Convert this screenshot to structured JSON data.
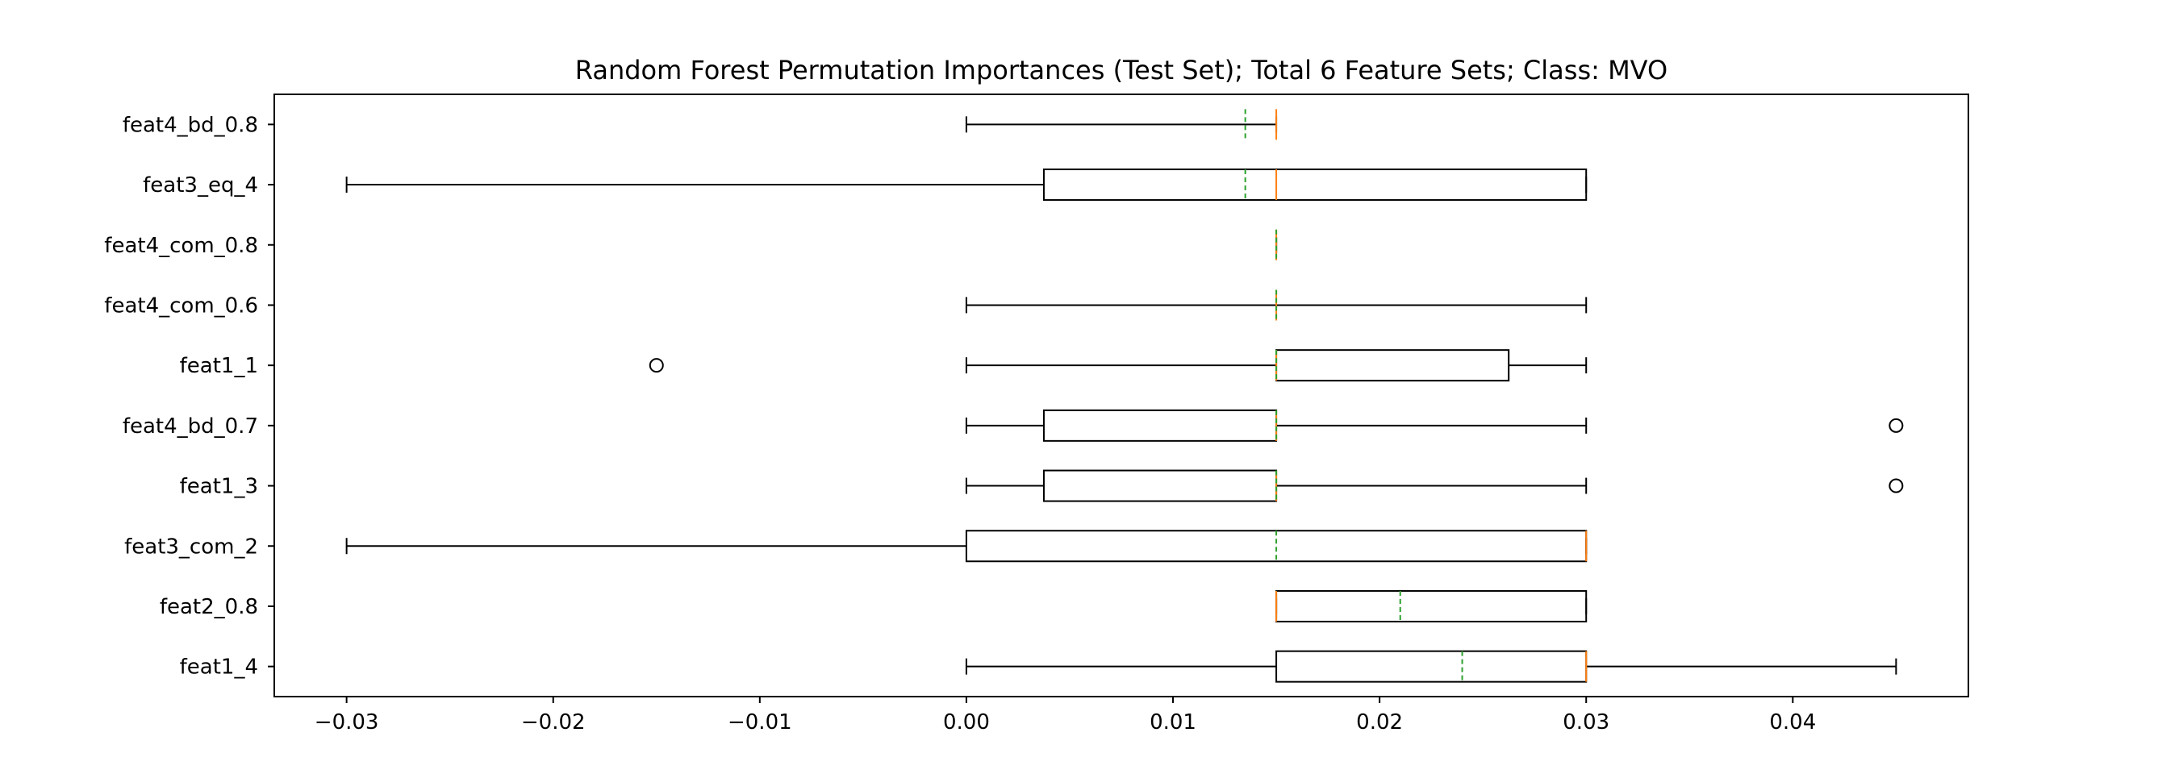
{
  "chart_data": {
    "type": "boxplot",
    "orientation": "horizontal",
    "title": "Random Forest Permutation Importances (Test Set); Total 6 Feature Sets; Class: MVO",
    "xlabel": "",
    "ylabel": "",
    "xlim": [
      -0.0335,
      0.0485
    ],
    "x_ticks": [
      -0.03,
      -0.02,
      -0.01,
      0.0,
      0.01,
      0.02,
      0.03,
      0.04
    ],
    "x_tick_labels": [
      "−0.03",
      "−0.02",
      "−0.01",
      "0.00",
      "0.01",
      "0.02",
      "0.03",
      "0.04"
    ],
    "grid": false,
    "legend": "none",
    "colors": {
      "box": "#000000",
      "median": "#ff7f0e",
      "mean": "#2ca02c",
      "outlier": "#000000"
    },
    "categories": [
      "feat1_4",
      "feat2_0.8",
      "feat3_com_2",
      "feat1_3",
      "feat4_bd_0.7",
      "feat1_1",
      "feat4_com_0.6",
      "feat4_com_0.8",
      "feat3_eq_4",
      "feat4_bd_0.8"
    ],
    "boxes": [
      {
        "label": "feat1_4",
        "whislo": 0.0,
        "q1": 0.015,
        "med": 0.03,
        "q3": 0.03,
        "whishi": 0.045,
        "mean": 0.024,
        "fliers": []
      },
      {
        "label": "feat2_0.8",
        "whislo": 0.015,
        "q1": 0.015,
        "med": 0.015,
        "q3": 0.03,
        "whishi": 0.03,
        "mean": 0.021,
        "fliers": []
      },
      {
        "label": "feat3_com_2",
        "whislo": -0.03,
        "q1": 0.0,
        "med": 0.03,
        "q3": 0.03,
        "whishi": 0.03,
        "mean": 0.015,
        "fliers": []
      },
      {
        "label": "feat1_3",
        "whislo": 0.0,
        "q1": 0.00375,
        "med": 0.015,
        "q3": 0.015,
        "whishi": 0.03,
        "mean": 0.015,
        "fliers": [
          0.045
        ]
      },
      {
        "label": "feat4_bd_0.7",
        "whislo": 0.0,
        "q1": 0.00375,
        "med": 0.015,
        "q3": 0.015,
        "whishi": 0.03,
        "mean": 0.015,
        "fliers": [
          0.045
        ]
      },
      {
        "label": "feat1_1",
        "whislo": 0.0,
        "q1": 0.015,
        "med": 0.015,
        "q3": 0.02625,
        "whishi": 0.03,
        "mean": 0.015,
        "fliers": [
          -0.015
        ]
      },
      {
        "label": "feat4_com_0.6",
        "whislo": 0.0,
        "q1": 0.015,
        "med": 0.015,
        "q3": 0.015,
        "whishi": 0.03,
        "mean": 0.015,
        "fliers": []
      },
      {
        "label": "feat4_com_0.8",
        "whislo": 0.015,
        "q1": 0.015,
        "med": 0.015,
        "q3": 0.015,
        "whishi": 0.015,
        "mean": 0.015,
        "fliers": []
      },
      {
        "label": "feat3_eq_4",
        "whislo": -0.03,
        "q1": 0.00375,
        "med": 0.015,
        "q3": 0.03,
        "whishi": 0.03,
        "mean": 0.0135,
        "fliers": []
      },
      {
        "label": "feat4_bd_0.8",
        "whislo": 0.0,
        "q1": 0.015,
        "med": 0.015,
        "q3": 0.015,
        "whishi": 0.015,
        "mean": 0.0135,
        "fliers": []
      }
    ]
  }
}
